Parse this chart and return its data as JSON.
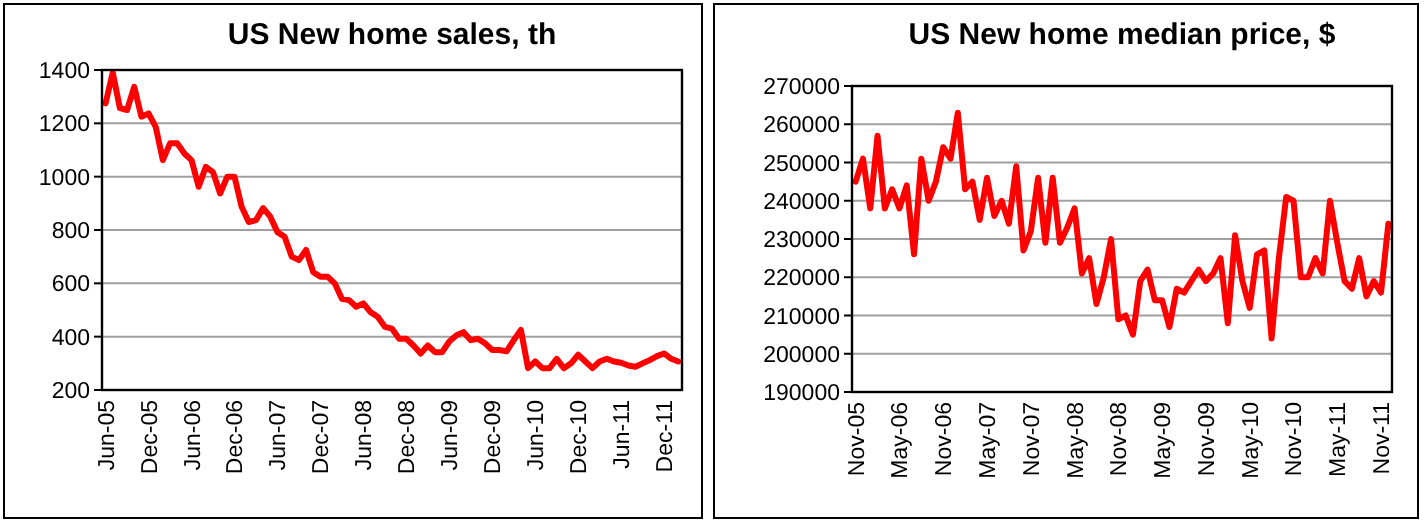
{
  "chart_data": [
    {
      "type": "line",
      "title": "US New home sales, th",
      "categories": [
        "Jun-05",
        null,
        null,
        null,
        null,
        null,
        "Dec-05",
        null,
        null,
        null,
        null,
        null,
        "Jun-06",
        null,
        null,
        null,
        null,
        null,
        "Dec-06",
        null,
        null,
        null,
        null,
        null,
        "Jun-07",
        null,
        null,
        null,
        null,
        null,
        "Dec-07",
        null,
        null,
        null,
        null,
        null,
        "Jun-08",
        null,
        null,
        null,
        null,
        null,
        "Dec-08",
        null,
        null,
        null,
        null,
        null,
        "Jun-09",
        null,
        null,
        null,
        null,
        null,
        "Dec-09",
        null,
        null,
        null,
        null,
        null,
        "Jun-10",
        null,
        null,
        null,
        null,
        null,
        "Dec-10",
        null,
        null,
        null,
        null,
        null,
        "Jun-11",
        null,
        null,
        null,
        null,
        null,
        "Dec-11",
        null,
        null
      ],
      "series": [
        {
          "color": "#ff0000",
          "values": [
            1275,
            1390,
            1257,
            1250,
            1337,
            1225,
            1237,
            1187,
            1062,
            1125,
            1125,
            1087,
            1062,
            962,
            1037,
            1017,
            937,
            1000,
            1000,
            887,
            830,
            837,
            882,
            850,
            792,
            775,
            700,
            687,
            725,
            642,
            625,
            625,
            600,
            542,
            537,
            512,
            525,
            492,
            475,
            437,
            430,
            392,
            392,
            367,
            337,
            367,
            342,
            342,
            382,
            405,
            417,
            387,
            392,
            375,
            350,
            350,
            345,
            387,
            425,
            282,
            307,
            282,
            282,
            317,
            282,
            300,
            332,
            307,
            282,
            307,
            317,
            307,
            302,
            292,
            287,
            300,
            312,
            327,
            337,
            317,
            307
          ]
        }
      ],
      "ylim": [
        200,
        1400
      ],
      "yticks": [
        200,
        400,
        600,
        800,
        1000,
        1200,
        1400
      ],
      "grid": "y",
      "marker": "none",
      "line_style": "solid"
    },
    {
      "type": "line",
      "title": "US New home median price, $",
      "categories": [
        "Nov-05",
        null,
        null,
        null,
        null,
        null,
        "May-06",
        null,
        null,
        null,
        null,
        null,
        "Nov-06",
        null,
        null,
        null,
        null,
        null,
        "May-07",
        null,
        null,
        null,
        null,
        null,
        "Nov-07",
        null,
        null,
        null,
        null,
        null,
        "May-08",
        null,
        null,
        null,
        null,
        null,
        "Nov-08",
        null,
        null,
        null,
        null,
        null,
        "May-09",
        null,
        null,
        null,
        null,
        null,
        "Nov-09",
        null,
        null,
        null,
        null,
        null,
        "May-10",
        null,
        null,
        null,
        null,
        null,
        "Nov-10",
        null,
        null,
        null,
        null,
        null,
        "May-11",
        null,
        null,
        null,
        null,
        null,
        "Nov-11",
        null
      ],
      "series": [
        {
          "color": "#ff0000",
          "values": [
            245000,
            251000,
            238000,
            257000,
            238000,
            243000,
            238000,
            244000,
            226000,
            251000,
            240000,
            245000,
            254000,
            251000,
            263000,
            243000,
            245000,
            235000,
            246000,
            236000,
            240000,
            234000,
            249000,
            227000,
            232000,
            246000,
            229000,
            246000,
            229000,
            233000,
            238000,
            221000,
            225000,
            213000,
            220000,
            230000,
            209000,
            210000,
            205000,
            219000,
            222000,
            214000,
            214000,
            207000,
            217000,
            216000,
            219000,
            222000,
            219000,
            221000,
            225000,
            208000,
            231000,
            219000,
            212000,
            226000,
            227000,
            204000,
            225000,
            241000,
            240000,
            220000,
            220000,
            225000,
            221000,
            240000,
            229000,
            219000,
            217000,
            225000,
            215000,
            219000,
            216000,
            234000
          ]
        }
      ],
      "ylim": [
        190000,
        270000
      ],
      "yticks": [
        190000,
        200000,
        210000,
        220000,
        230000,
        240000,
        250000,
        260000,
        270000
      ],
      "grid": "y",
      "marker": "none",
      "line_style": "solid"
    }
  ]
}
